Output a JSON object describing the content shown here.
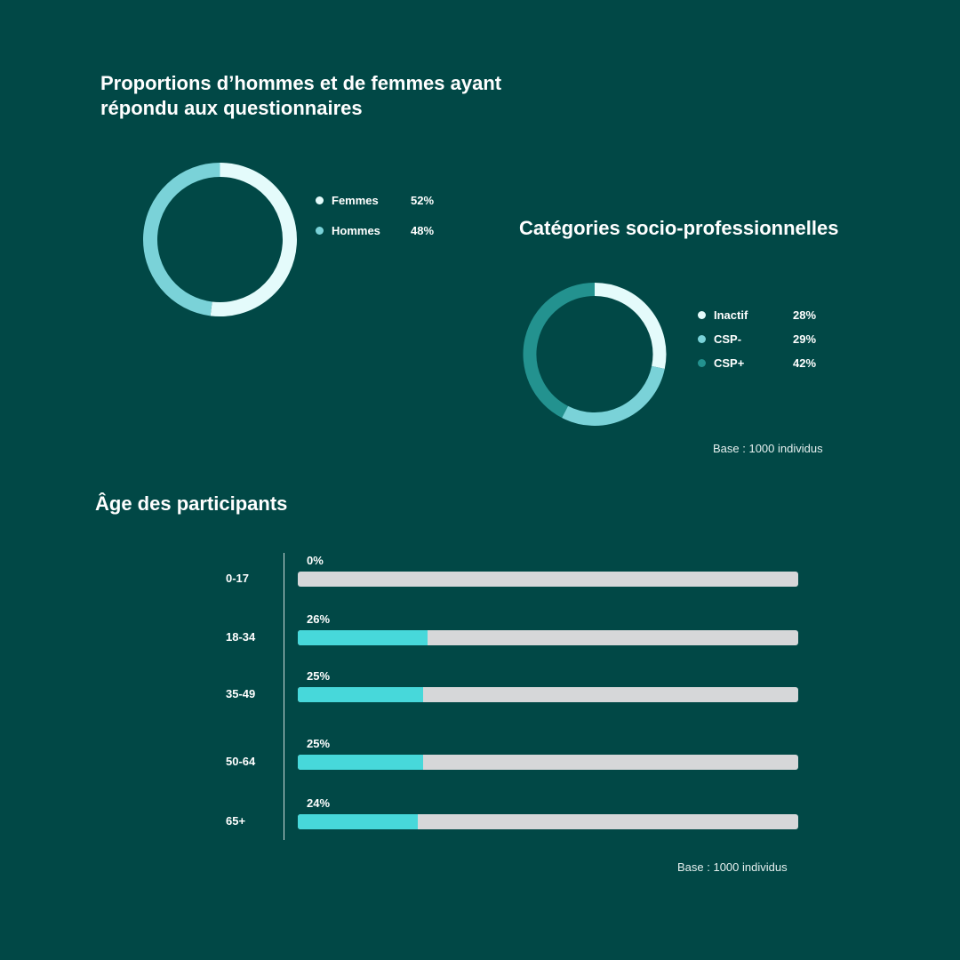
{
  "gender": {
    "title": "Proportions d’hommes et de femmes ayant répondu aux questionnaires"
  },
  "csp": {
    "title": "Catégories socio-professionnelles",
    "base": "Base : 1000 individus"
  },
  "age": {
    "title": "Âge des participants",
    "base": "Base : 1000 individus"
  },
  "colors": {
    "background": "#014846",
    "light": "#e4fbfb",
    "mid": "#7ad2d8",
    "dark": "#23928f",
    "bar_fill": "#47d8da",
    "bar_track": "#d6d7d9"
  },
  "chart_data": [
    {
      "type": "pie",
      "title": "Proportions d’hommes et de femmes ayant répondu aux questionnaires",
      "categories": [
        "Femmes",
        "Hommes"
      ],
      "values": [
        52,
        48
      ],
      "labels": [
        "52%",
        "48%"
      ],
      "colors": [
        "#e4fbfb",
        "#7ad2d8"
      ],
      "donut": true
    },
    {
      "type": "pie",
      "title": "Catégories socio-professionnelles",
      "categories": [
        "Inactif",
        "CSP-",
        "CSP+"
      ],
      "values": [
        28,
        29,
        42
      ],
      "labels": [
        "28%",
        "29%",
        "42%"
      ],
      "colors": [
        "#e4fbfb",
        "#7ad2d8",
        "#23928f"
      ],
      "donut": true
    },
    {
      "type": "bar",
      "orientation": "horizontal",
      "title": "Âge des participants",
      "categories": [
        "0-17",
        "18-34",
        "35-49",
        "50-64",
        "65+"
      ],
      "values": [
        0,
        26,
        25,
        25,
        24
      ],
      "labels": [
        "0%",
        "26%",
        "25%",
        "25%",
        "24%"
      ],
      "xlim": [
        0,
        100
      ]
    }
  ]
}
